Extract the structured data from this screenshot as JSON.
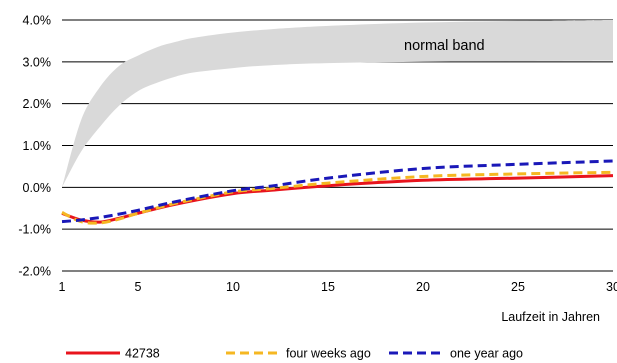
{
  "chart_data": {
    "type": "line",
    "title": "",
    "xlabel": "Laufzeit in Jahren",
    "ylabel": "",
    "x_ticks": [
      "1",
      "5",
      "10",
      "15",
      "20",
      "25",
      "30"
    ],
    "y_ticks": [
      "4.0%",
      "3.0%",
      "2.0%",
      "1.0%",
      "0.0%",
      "-1.0%",
      "-2.0%"
    ],
    "xlim": [
      1,
      30
    ],
    "ylim": [
      -2.0,
      4.0
    ],
    "grid": "horizontal",
    "legend_position": "bottom",
    "band": {
      "label": "normal band",
      "color": "#d9d9d9",
      "x": [
        1,
        2,
        3,
        4,
        5,
        6,
        7,
        8,
        10,
        12,
        15,
        20,
        25,
        30
      ],
      "lower": [
        0.0,
        0.85,
        1.45,
        1.95,
        2.3,
        2.5,
        2.65,
        2.75,
        2.85,
        2.92,
        2.97,
        3.0,
        3.02,
        3.03
      ],
      "upper": [
        0.0,
        1.6,
        2.4,
        2.9,
        3.15,
        3.35,
        3.48,
        3.58,
        3.7,
        3.78,
        3.86,
        3.94,
        3.98,
        4.0
      ]
    },
    "x": [
      1,
      2,
      3,
      4,
      5,
      7,
      10,
      12,
      15,
      20,
      25,
      30
    ],
    "series": [
      {
        "name": "42738",
        "color": "#e8141d",
        "dash": "solid",
        "values": [
          -0.62,
          -0.78,
          -0.83,
          -0.74,
          -0.62,
          -0.4,
          -0.15,
          -0.07,
          0.04,
          0.17,
          0.22,
          0.28
        ]
      },
      {
        "name": "four weeks ago",
        "color": "#f5b722",
        "dash": "dashed",
        "values": [
          -0.6,
          -0.82,
          -0.85,
          -0.76,
          -0.62,
          -0.38,
          -0.11,
          -0.03,
          0.1,
          0.26,
          0.32,
          0.36
        ]
      },
      {
        "name": "one year ago",
        "color": "#1a18b8",
        "dash": "dashed",
        "values": [
          -0.82,
          -0.78,
          -0.72,
          -0.64,
          -0.55,
          -0.34,
          -0.08,
          0.03,
          0.22,
          0.45,
          0.55,
          0.63
        ]
      }
    ]
  }
}
